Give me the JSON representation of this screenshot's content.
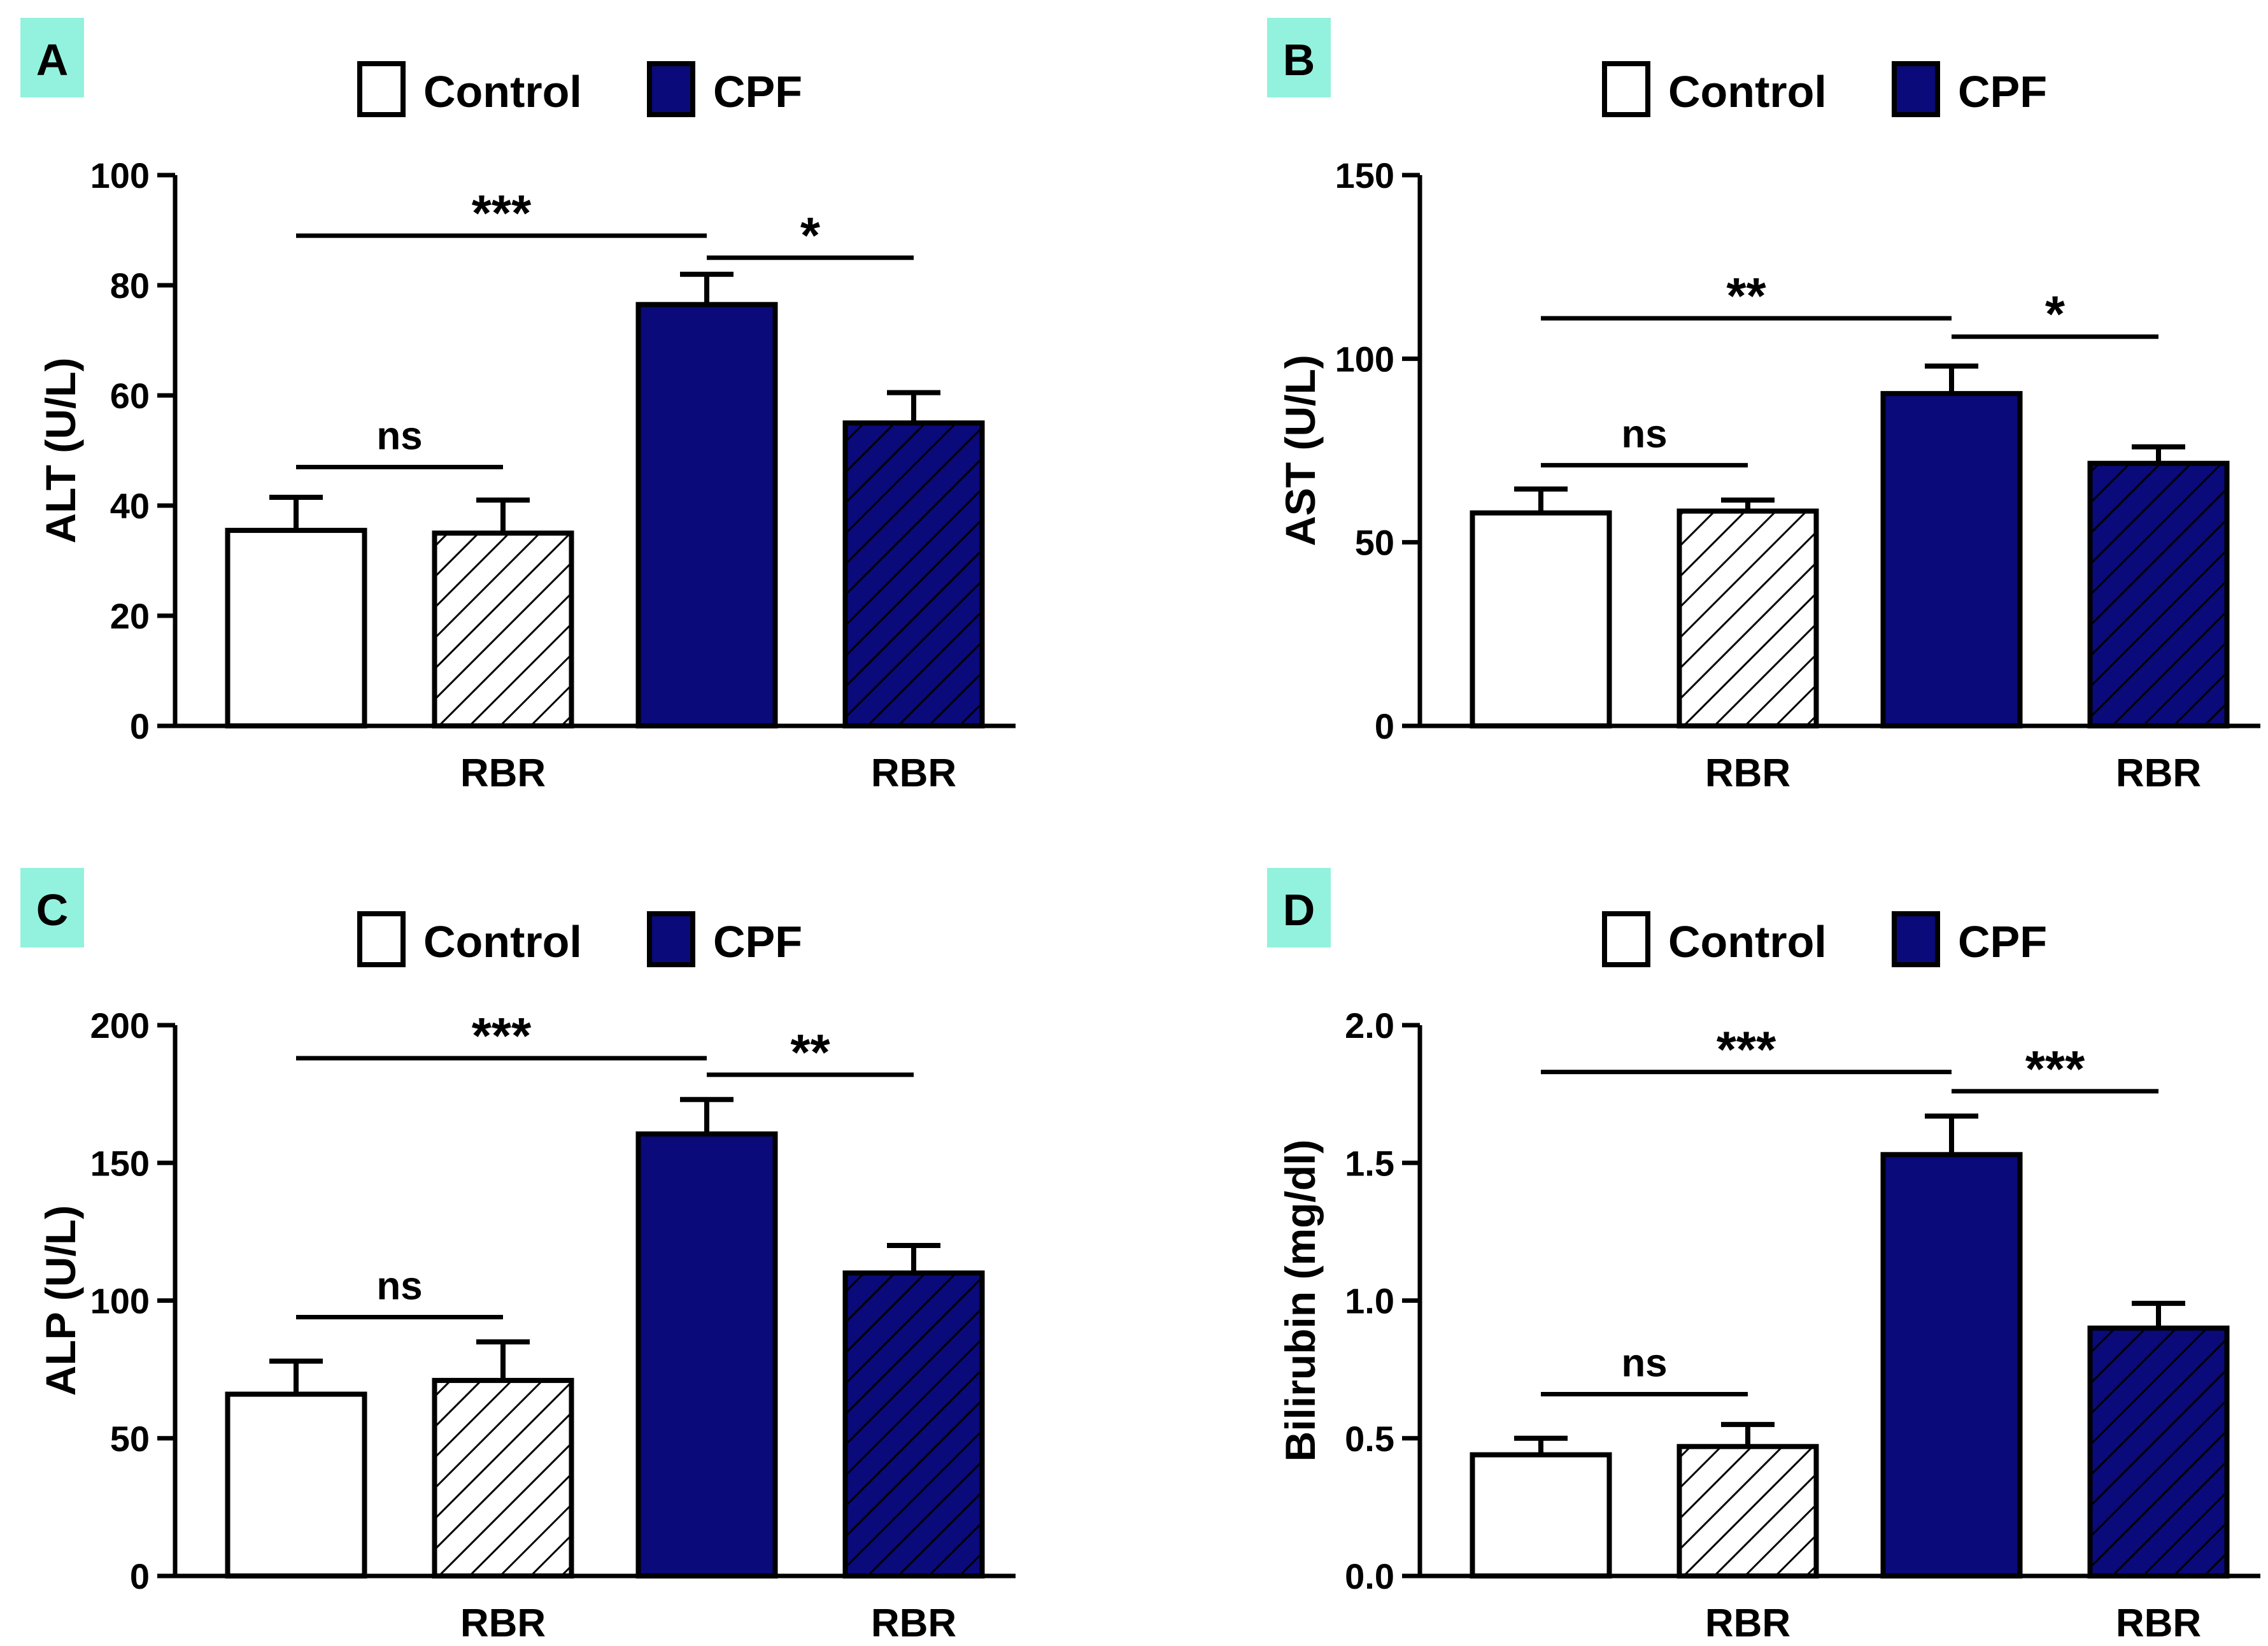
{
  "colors": {
    "control_fill": "#ffffff",
    "cpf_fill": "#0a0a7a",
    "stroke": "#000000",
    "panel_label_bg": "#93f2dd",
    "hatch_light": "#000000",
    "hatch_dark": "#000000"
  },
  "legend": {
    "control": "Control",
    "cpf": "CPF"
  },
  "chart_data": [
    {
      "type": "bar",
      "panel": "A",
      "ylabel": "ALT (U/L)",
      "ylim": [
        0,
        100
      ],
      "yticks": [
        0,
        20,
        40,
        60,
        80,
        100
      ],
      "ytick_labels": [
        "0",
        "20",
        "40",
        "60",
        "80",
        "100"
      ],
      "bar_labels": [
        "",
        "RBR",
        "",
        "RBR"
      ],
      "series": [
        {
          "name": "Control",
          "values": [
            35.5,
            35.0
          ],
          "errors": [
            6.0,
            6.0
          ]
        },
        {
          "name": "CPF",
          "values": [
            76.5,
            55.0
          ],
          "errors": [
            5.5,
            5.5
          ]
        }
      ],
      "significance": [
        {
          "from": 0,
          "to": 1,
          "label": "ns",
          "y": 47
        },
        {
          "from": 0,
          "to": 2,
          "label": "***",
          "y": 89
        },
        {
          "from": 2,
          "to": 3,
          "label": "*",
          "y": 85
        }
      ]
    },
    {
      "type": "bar",
      "panel": "B",
      "ylabel": "AST (U/L)",
      "ylim": [
        0,
        150
      ],
      "yticks": [
        0,
        50,
        100,
        150
      ],
      "ytick_labels": [
        "0",
        "50",
        "100",
        "150"
      ],
      "bar_labels": [
        "",
        "RBR",
        "",
        "RBR"
      ],
      "series": [
        {
          "name": "Control",
          "values": [
            58.0,
            58.5
          ],
          "errors": [
            6.5,
            3.0
          ]
        },
        {
          "name": "CPF",
          "values": [
            90.5,
            71.5
          ],
          "errors": [
            7.5,
            4.5
          ]
        }
      ],
      "significance": [
        {
          "from": 0,
          "to": 1,
          "label": "ns",
          "y": 71
        },
        {
          "from": 0,
          "to": 2,
          "label": "**",
          "y": 111
        },
        {
          "from": 2,
          "to": 3,
          "label": "*",
          "y": 106
        }
      ]
    },
    {
      "type": "bar",
      "panel": "C",
      "ylabel": "ALP (U/L)",
      "ylim": [
        0,
        200
      ],
      "yticks": [
        0,
        50,
        100,
        150,
        200
      ],
      "ytick_labels": [
        "0",
        "50",
        "100",
        "150",
        "200"
      ],
      "bar_labels": [
        "",
        "RBR",
        "",
        "RBR"
      ],
      "series": [
        {
          "name": "Control",
          "values": [
            66.0,
            71.0
          ],
          "errors": [
            12.0,
            14.0
          ]
        },
        {
          "name": "CPF",
          "values": [
            160.5,
            110.0
          ],
          "errors": [
            12.5,
            10.0
          ]
        }
      ],
      "significance": [
        {
          "from": 0,
          "to": 1,
          "label": "ns",
          "y": 94
        },
        {
          "from": 0,
          "to": 2,
          "label": "***",
          "y": 188
        },
        {
          "from": 2,
          "to": 3,
          "label": "**",
          "y": 182
        }
      ]
    },
    {
      "type": "bar",
      "panel": "D",
      "ylabel": "Bilirubin (mg/dl)",
      "ylim": [
        0,
        2.0
      ],
      "yticks": [
        0,
        0.5,
        1.0,
        1.5,
        2.0
      ],
      "ytick_labels": [
        "0.0",
        "0.5",
        "1.0",
        "1.5",
        "2.0"
      ],
      "bar_labels": [
        "",
        "RBR",
        "",
        "RBR"
      ],
      "series": [
        {
          "name": "Control",
          "values": [
            0.44,
            0.47
          ],
          "errors": [
            0.06,
            0.08
          ]
        },
        {
          "name": "CPF",
          "values": [
            1.53,
            0.9
          ],
          "errors": [
            0.14,
            0.09
          ]
        }
      ],
      "significance": [
        {
          "from": 0,
          "to": 1,
          "label": "ns",
          "y": 0.66
        },
        {
          "from": 0,
          "to": 2,
          "label": "***",
          "y": 1.83
        },
        {
          "from": 2,
          "to": 3,
          "label": "***",
          "y": 1.76
        }
      ]
    }
  ]
}
